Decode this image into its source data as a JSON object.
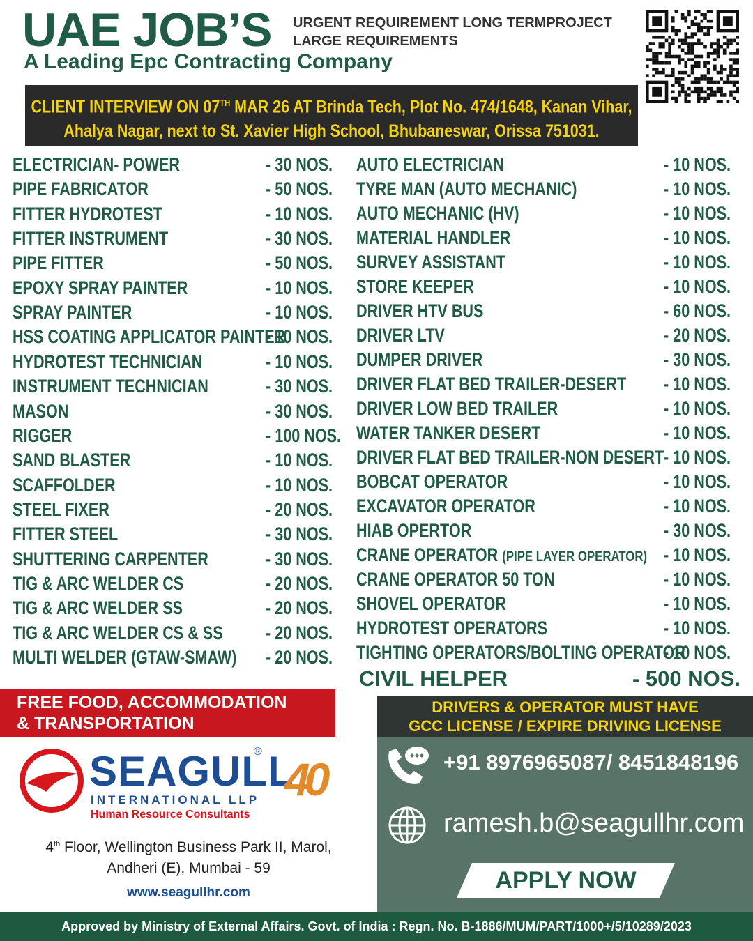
{
  "header": {
    "title": "UAE JOB’S",
    "subtitle_lines": [
      "URGENT REQUIREMENT LONG TERMPROJECT",
      "LARGE REQUIREMENTS"
    ],
    "tagline": "A Leading Epc Contracting Company"
  },
  "interview": {
    "line1_start": "CLIENT INTERVIEW  ON 07",
    "line1_sup": "TH",
    "line1_end": " MAR 26 AT Brinda Tech, Plot No. 474/1648, Kanan Vihar,",
    "line2": "Ahalya Nagar, next to St. Xavier High School, Bhubaneswar, Orissa 751031."
  },
  "jobs_left": [
    {
      "title": "ELECTRICIAN- POWER",
      "count": "- 30 NOS."
    },
    {
      "title": "PIPE FABRICATOR",
      "count": "- 50 NOS."
    },
    {
      "title": "FITTER HYDROTEST",
      "count": "- 10 NOS."
    },
    {
      "title": "FITTER INSTRUMENT",
      "count": "- 30 NOS."
    },
    {
      "title": "PIPE FITTER",
      "count": "- 50 NOS."
    },
    {
      "title": "EPOXY SPRAY PAINTER",
      "count": "- 10 NOS."
    },
    {
      "title": "SPRAY PAINTER",
      "count": "- 10 NOS."
    },
    {
      "title": "HSS COATING APPLICATOR PAINTER",
      "count": "- 10 NOS."
    },
    {
      "title": "HYDROTEST TECHNICIAN",
      "count": "- 10 NOS."
    },
    {
      "title": "INSTRUMENT TECHNICIAN",
      "count": "- 30 NOS."
    },
    {
      "title": "MASON",
      "count": "- 30 NOS."
    },
    {
      "title": "RIGGER",
      "count": "- 100 NOS."
    },
    {
      "title": "SAND BLASTER",
      "count": "- 10 NOS."
    },
    {
      "title": "SCAFFOLDER",
      "count": "- 10 NOS."
    },
    {
      "title": "STEEL FIXER",
      "count": "- 20 NOS."
    },
    {
      "title": "FITTER STEEL",
      "count": "- 30 NOS."
    },
    {
      "title": "SHUTTERING CARPENTER",
      "count": "- 30 NOS."
    },
    {
      "title": "TIG & ARC WELDER CS",
      "count": "- 20 NOS."
    },
    {
      "title": "TIG & ARC WELDER SS",
      "count": "- 20 NOS."
    },
    {
      "title": "TIG & ARC WELDER CS & SS",
      "count": "- 20 NOS."
    },
    {
      "title": "MULTI WELDER (GTAW-SMAW)",
      "count": "- 20 NOS."
    }
  ],
  "jobs_right": [
    {
      "title": "AUTO ELECTRICIAN",
      "count": "- 10 NOS."
    },
    {
      "title": "TYRE MAN (AUTO MECHANIC)",
      "count": "- 10 NOS."
    },
    {
      "title": "AUTO MECHANIC (HV)",
      "count": "- 10 NOS."
    },
    {
      "title": "MATERIAL HANDLER",
      "count": "- 10 NOS."
    },
    {
      "title": "SURVEY ASSISTANT",
      "count": "- 10 NOS."
    },
    {
      "title": "STORE KEEPER",
      "count": "- 10 NOS."
    },
    {
      "title": "DRIVER HTV BUS",
      "count": "- 60 NOS."
    },
    {
      "title": "DRIVER LTV",
      "count": "- 20 NOS."
    },
    {
      "title": "DUMPER DRIVER",
      "count": "- 30 NOS."
    },
    {
      "title": "DRIVER FLAT BED TRAILER-DESERT",
      "count": "- 10 NOS."
    },
    {
      "title": "DRIVER LOW BED TRAILER",
      "count": "- 10 NOS."
    },
    {
      "title": "WATER TANKER DESERT",
      "count": "- 10 NOS."
    },
    {
      "title": "DRIVER FLAT BED TRAILER-NON DESERT",
      "count": "- 10 NOS."
    },
    {
      "title": "BOBCAT OPERATOR",
      "count": "- 10 NOS."
    },
    {
      "title": "EXCAVATOR OPERATOR",
      "count": "- 10 NOS."
    },
    {
      "title": "HIAB OPERTOR",
      "count": "- 30 NOS."
    },
    {
      "title": "CRANE OPERATOR",
      "note": "(PIPE LAYER OPERATOR)",
      "count": "- 10 NOS."
    },
    {
      "title": "CRANE OPERATOR 50 TON",
      "count": "- 10 NOS."
    },
    {
      "title": "SHOVEL OPERATOR",
      "count": "- 10 NOS."
    },
    {
      "title": "HYDROTEST OPERATORS",
      "count": "- 10 NOS."
    },
    {
      "title": "TIGHTING OPERATORS/BOLTING OPERATOR",
      "count": "- 10 NOS."
    }
  ],
  "highlight": {
    "title": "CIVIL HELPER",
    "count": "- 500 NOS."
  },
  "benefits": [
    "FREE FOOD, ACCOMMODATION",
    "& TRANSPORTATION"
  ],
  "license_note": [
    "DRIVERS & OPERATOR MUST HAVE",
    "GCC LICENSE / EXPIRE DRIVING LICENSE"
  ],
  "company": {
    "name": "SEAGULL",
    "registered": "®",
    "subname": "INTERNATIONAL LLP",
    "description": "Human Resource Consultants",
    "badge": "40",
    "address_floor": "4",
    "address_sup": "th",
    "address_line1_rest": " Floor, Wellington Business Park II, Marol,",
    "address_line2": "Andheri (E), Mumbai - 59",
    "website": "www.seagullhr.com"
  },
  "contact": {
    "phone": "+91 8976965087/ 8451848196",
    "email": "ramesh.b@seagullhr.com",
    "button": "APPLY NOW"
  },
  "footer": "Approved by Ministry of External Affairs. Govt. of India : Regn. No. B-1886/MUM/PART/1000+/5/10289/2023"
}
